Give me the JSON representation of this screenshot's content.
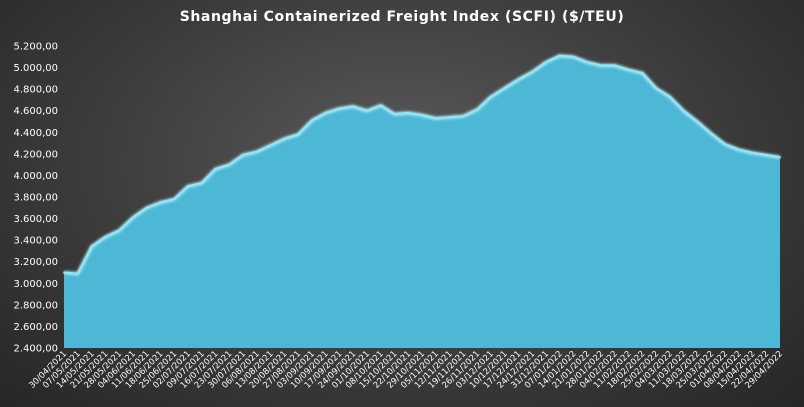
{
  "chart_data": {
    "type": "area",
    "title": "Shanghai Containerized Freight Index  (SCFI) ($/TEU)",
    "ylim": [
      2400,
      5200
    ],
    "yticks": [
      "2.400,00",
      "2.600,00",
      "2.800,00",
      "3.000,00",
      "3.200,00",
      "3.400,00",
      "3.600,00",
      "3.800,00",
      "4.000,00",
      "4.200,00",
      "4.400,00",
      "4.600,00",
      "4.800,00",
      "5.000,00",
      "5.200,00"
    ],
    "ytick_values": [
      2400,
      2600,
      2800,
      3000,
      3200,
      3400,
      3600,
      3800,
      4000,
      4200,
      4400,
      4600,
      4800,
      5000,
      5200
    ],
    "grid": false,
    "legend": "none",
    "colors": {
      "fill": "#4db8d6",
      "line": "#8ee6f7"
    },
    "categories": [
      "30/04/2021",
      "07/05/2021",
      "14/05/2021",
      "21/05/2021",
      "28/05/2021",
      "04/06/2021",
      "11/06/2021",
      "18/06/2021",
      "25/06/2021",
      "02/07/2021",
      "09/07/2021",
      "16/07/2021",
      "23/07/2021",
      "30/07/2021",
      "06/08/2021",
      "13/08/2021",
      "20/08/2021",
      "27/08/2021",
      "03/09/2021",
      "10/09/2021",
      "17/09/2021",
      "24/09/2021",
      "01/10/2021",
      "08/10/2021",
      "15/10/2021",
      "22/10/2021",
      "29/10/2021",
      "05/11/2021",
      "12/11/2021",
      "19/11/2021",
      "26/11/2021",
      "03/12/2021",
      "10/12/2021",
      "17/12/2021",
      "24/12/2021",
      "31/12/2021",
      "07/01/2022",
      "14/01/2022",
      "21/01/2022",
      "28/01/2022",
      "04/02/2022",
      "11/02/2022",
      "18/02/2022",
      "25/02/2022",
      "04/03/2022",
      "11/03/2022",
      "18/03/2022",
      "25/03/2022",
      "01/04/2022",
      "08/04/2022",
      "15/04/2022",
      "22/04/2022",
      "29/04/2022"
    ],
    "xtick_labels": [
      "30/04/2021",
      "07/05/2021",
      "14/05/2021",
      "21/05/2021",
      "28/05/2021",
      "04/06/2021",
      "11/06/2021",
      "18/06/2021",
      "25/06/2021",
      "02/07/2021",
      "09/07/2021",
      "16/07/2021",
      "23/07/2021",
      "30/07/2021",
      "06/08/2021",
      "13/08/2021",
      "20/08/2021",
      "27/08/2021",
      "03/09/2021",
      "10/09/2021",
      "17/09/2021",
      "24/09/2021",
      "01/10/2021",
      "08/10/2021",
      "15/10/2021",
      "22/10/2021",
      "29/10/2021",
      "05/11/2021",
      "12/11/2021",
      "19/11/2021",
      "26/11/2021",
      "03/12/2021",
      "10/12/2021",
      "17/12/2021",
      "24/12/2021",
      "31/12/2021",
      "07/01/2022",
      "14/01/2022",
      "21/01/2022",
      "28/01/2022",
      "04/02/2022",
      "11/02/2022",
      "18/02/2022",
      "25/02/2022",
      "04/03/2022",
      "11/03/2022",
      "18/03/2022",
      "25/03/2022",
      "01/04/2022",
      "08/04/2022",
      "15/04/2022",
      "22/04/2022",
      "29/04/2022"
    ],
    "values": [
      3100,
      3090,
      3340,
      3430,
      3490,
      3610,
      3700,
      3750,
      3780,
      3900,
      3930,
      4060,
      4100,
      4190,
      4220,
      4280,
      4340,
      4380,
      4510,
      4580,
      4620,
      4640,
      4600,
      4650,
      4570,
      4580,
      4560,
      4530,
      4540,
      4550,
      4610,
      4730,
      4810,
      4890,
      4960,
      5050,
      5110,
      5100,
      5050,
      5020,
      5020,
      4980,
      4950,
      4810,
      4730,
      4600,
      4500,
      4390,
      4290,
      4240,
      4210,
      4190,
      4170
    ]
  }
}
